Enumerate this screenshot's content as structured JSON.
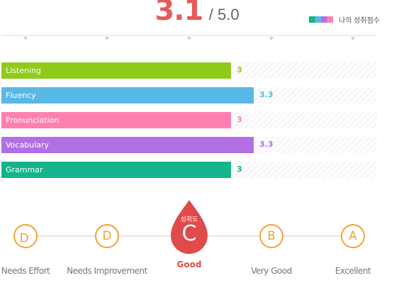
{
  "header": {
    "score": "3.1",
    "max": "/ 5.0"
  },
  "legend": {
    "label": "나의 성취점수"
  },
  "chart_data": {
    "type": "bar",
    "orientation": "horizontal",
    "categories": [
      "Listening",
      "Fluency",
      "Pronunciation",
      "Vocabulary",
      "Grammar"
    ],
    "values": [
      3,
      3.3,
      3,
      3.3,
      3
    ],
    "value_labels": [
      "3",
      "3.3",
      "3",
      "3.3",
      "3"
    ],
    "colors": [
      "#8fcb1b",
      "#58b8e6",
      "#ff80b0",
      "#b16fe6",
      "#13b48b"
    ],
    "xlim": [
      0,
      5
    ],
    "grid": false,
    "legend": "top-right"
  },
  "levels": {
    "items": [
      {
        "letter": "D",
        "sup": "-",
        "name": "Needs Effort"
      },
      {
        "letter": "D",
        "sup": "",
        "name": "Needs Improvement"
      },
      {
        "letter": "C",
        "sup": "",
        "name": "Good",
        "badge": "성취도"
      },
      {
        "letter": "B",
        "sup": "",
        "name": "Very Good"
      },
      {
        "letter": "A",
        "sup": "",
        "name": "Excellent"
      }
    ],
    "active_index": 2,
    "accent": "#f3a233",
    "active_color": "#e04a4a"
  }
}
